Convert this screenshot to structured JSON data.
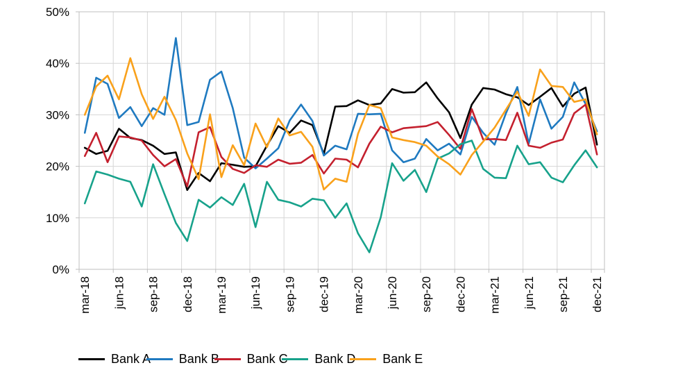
{
  "chart_data": {
    "type": "line",
    "title": "",
    "xlabel": "",
    "ylabel": "",
    "ylim": [
      0,
      50
    ],
    "grid": true,
    "legend_position": "bottom",
    "y_ticks": [
      "0%",
      "10%",
      "20%",
      "30%",
      "40%",
      "50%"
    ],
    "x_tick_every": 3,
    "x_tick_labels": [
      "mar-18",
      "jun-18",
      "sep-18",
      "dec-18",
      "mar-19",
      "jun-19",
      "sep-19",
      "dec-19",
      "mar-20",
      "jun-20",
      "sep-20",
      "dec-20",
      "mar-21",
      "jun-21",
      "sep-21",
      "dec-21"
    ],
    "categories": [
      "mar-18",
      "apr-18",
      "may-18",
      "jun-18",
      "jul-18",
      "aug-18",
      "sep-18",
      "oct-18",
      "nov-18",
      "dec-18",
      "jan-19",
      "feb-19",
      "mar-19",
      "apr-19",
      "may-19",
      "jun-19",
      "jul-19",
      "aug-19",
      "sep-19",
      "oct-19",
      "nov-19",
      "dec-19",
      "jan-20",
      "feb-20",
      "mar-20",
      "apr-20",
      "may-20",
      "jun-20",
      "jul-20",
      "aug-20",
      "sep-20",
      "oct-20",
      "nov-20",
      "dec-20",
      "jan-21",
      "feb-21",
      "mar-21",
      "apr-21",
      "may-21",
      "jun-21",
      "jul-21",
      "aug-21",
      "sep-21",
      "oct-21",
      "nov-21",
      "dec-21"
    ],
    "series": [
      {
        "name": "Bank A",
        "color": "#000000",
        "values": [
          23.6,
          22.4,
          23.0,
          27.3,
          25.5,
          25.1,
          24.0,
          22.4,
          22.7,
          15.4,
          18.7,
          17.1,
          20.6,
          20.3,
          19.9,
          20.0,
          24.0,
          27.8,
          26.5,
          28.9,
          28.0,
          22.4,
          31.6,
          31.7,
          32.8,
          31.9,
          32.2,
          35.0,
          34.3,
          34.4,
          36.3,
          33.2,
          30.5,
          25.5,
          32.0,
          35.2,
          34.9,
          34.0,
          33.4,
          31.9,
          33.5,
          35.2,
          31.6,
          34.1,
          35.3,
          24.2
        ]
      },
      {
        "name": "Bank B",
        "color": "#1F7AC0",
        "values": [
          26.5,
          37.2,
          36.0,
          29.4,
          31.5,
          27.8,
          31.3,
          30.0,
          44.9,
          28.0,
          28.6,
          36.8,
          38.4,
          31.3,
          21.7,
          19.6,
          21.5,
          23.5,
          28.9,
          32.0,
          28.8,
          22.1,
          24.0,
          23.3,
          30.2,
          30.1,
          30.2,
          23.1,
          20.8,
          21.5,
          25.3,
          23.1,
          24.4,
          22.3,
          29.6,
          26.5,
          24.2,
          30.3,
          35.4,
          24.4,
          33.0,
          27.3,
          29.6,
          36.3,
          32.1,
          26.8
        ]
      },
      {
        "name": "Bank C",
        "color": "#C4202E",
        "values": [
          22.0,
          26.5,
          20.8,
          25.8,
          25.6,
          25.0,
          22.2,
          20.0,
          21.4,
          16.1,
          26.6,
          27.6,
          21.8,
          19.5,
          18.7,
          20.2,
          19.9,
          21.3,
          20.5,
          20.7,
          22.2,
          18.6,
          21.5,
          21.3,
          19.8,
          24.4,
          27.7,
          26.6,
          27.4,
          27.6,
          27.8,
          28.6,
          26.1,
          23.4,
          31.1,
          25.2,
          25.3,
          25.1,
          30.4,
          24.0,
          23.6,
          24.6,
          25.2,
          30.3,
          32.0,
          22.3
        ]
      },
      {
        "name": "Bank D",
        "color": "#17A28B",
        "values": [
          12.8,
          19.0,
          18.4,
          17.6,
          17.0,
          12.2,
          20.4,
          14.6,
          9.0,
          5.5,
          13.5,
          12.0,
          14.0,
          12.5,
          16.6,
          8.2,
          17.0,
          13.5,
          13.0,
          12.2,
          13.7,
          13.4,
          10.0,
          12.8,
          7.0,
          3.3,
          10.1,
          20.6,
          17.2,
          19.3,
          15.0,
          21.5,
          22.5,
          24.3,
          25.0,
          19.5,
          17.8,
          17.7,
          24.0,
          20.4,
          20.8,
          17.8,
          16.9,
          20.2,
          23.1,
          19.8
        ]
      },
      {
        "name": "Bank E",
        "color": "#F9A11B",
        "values": [
          30.0,
          35.5,
          37.6,
          33.0,
          41.0,
          34.0,
          29.2,
          33.5,
          29.0,
          22.5,
          17.5,
          30.1,
          17.9,
          24.1,
          20.2,
          28.3,
          23.7,
          29.3,
          26.0,
          26.7,
          23.8,
          15.5,
          17.6,
          17.0,
          26.3,
          31.9,
          31.3,
          25.6,
          25.1,
          24.7,
          24.0,
          21.9,
          20.4,
          18.4,
          22.2,
          24.8,
          27.5,
          31.0,
          34.5,
          29.8,
          38.8,
          35.6,
          35.4,
          32.5,
          33.0,
          26.2
        ]
      }
    ],
    "gridline_color": "#D6D6D6",
    "axis_color": "#BFBFBF"
  }
}
